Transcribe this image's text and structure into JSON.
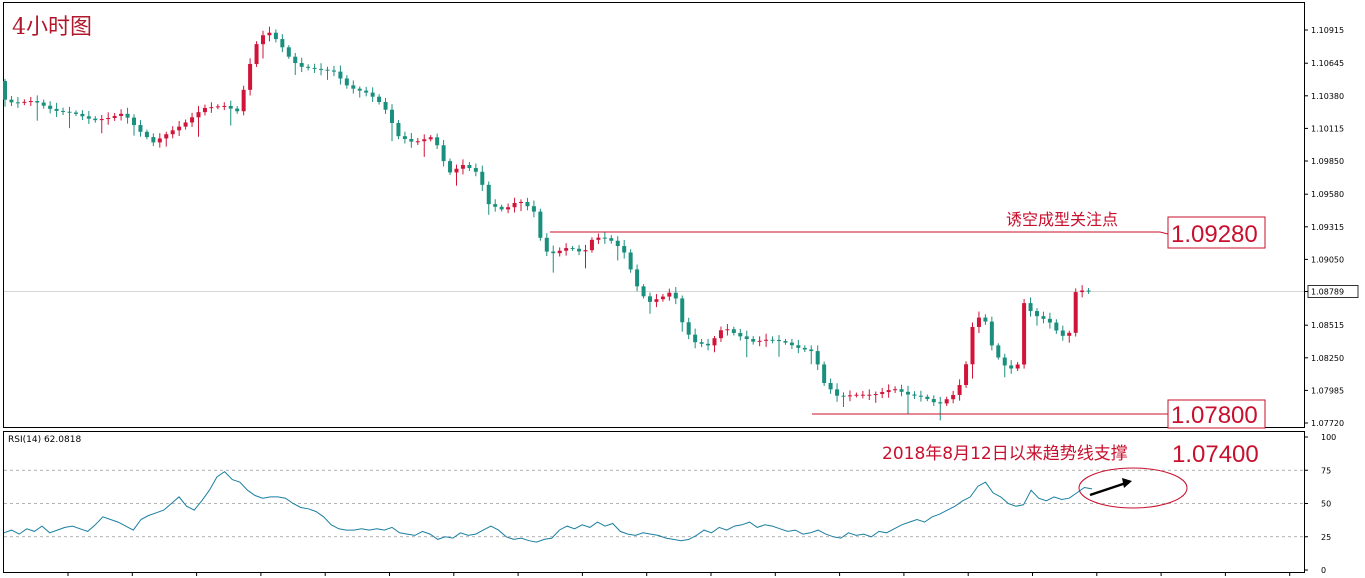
{
  "chart_data": {
    "type": "candlestick",
    "title": "4小时图",
    "price_axis": {
      "ticks": [
        "1.10915",
        "1.10645",
        "1.10380",
        "1.10115",
        "1.09850",
        "1.09580",
        "1.09315",
        "1.09050",
        "1.08789",
        "1.08515",
        "1.08250",
        "1.07985",
        "1.07720"
      ],
      "ylim": [
        1.0772,
        1.1101
      ],
      "current_price": "1.08789"
    },
    "annotations": {
      "resistance_label": "诱空成型关注点",
      "resistance_level": "1.09280",
      "support_level": "1.07800"
    },
    "candles_ohlc": [],
    "rsi": {
      "label": "RSI(14) 62.0818",
      "ticks": [
        "100",
        "75",
        "50",
        "25",
        "0"
      ],
      "ylim": [
        0,
        100
      ],
      "levels": [
        75,
        50,
        25
      ],
      "annotation": "2018年8月12日以来趋势线支撑",
      "annotation_value": "1.07400",
      "values": [
        28,
        30,
        27,
        31,
        29,
        33,
        28,
        30,
        32,
        33,
        31,
        29,
        34,
        40,
        38,
        36,
        33,
        30,
        38,
        41,
        43,
        45,
        50,
        55,
        48,
        45,
        52,
        60,
        70,
        74,
        68,
        66,
        60,
        56,
        54,
        55,
        55,
        54,
        50,
        47,
        46,
        44,
        40,
        34,
        31,
        30,
        30,
        31,
        30,
        31,
        30,
        32,
        28,
        27,
        26,
        29,
        27,
        23,
        25,
        24,
        28,
        26,
        27,
        30,
        33,
        30,
        25,
        23,
        24,
        22,
        21,
        23,
        24,
        30,
        33,
        31,
        34,
        32,
        36,
        33,
        35,
        29,
        27,
        26,
        28,
        27,
        26,
        24,
        23,
        22,
        23,
        26,
        30,
        28,
        32,
        30,
        33,
        34,
        36,
        32,
        34,
        33,
        31,
        29,
        30,
        27,
        28,
        30,
        27,
        25,
        24,
        28,
        26,
        27,
        25,
        29,
        28,
        31,
        34,
        36,
        38,
        36,
        40,
        42,
        45,
        48,
        52,
        55,
        63,
        66,
        58,
        55,
        50,
        48,
        49,
        60,
        54,
        52,
        55,
        53,
        54,
        58,
        62,
        61
      ]
    }
  }
}
